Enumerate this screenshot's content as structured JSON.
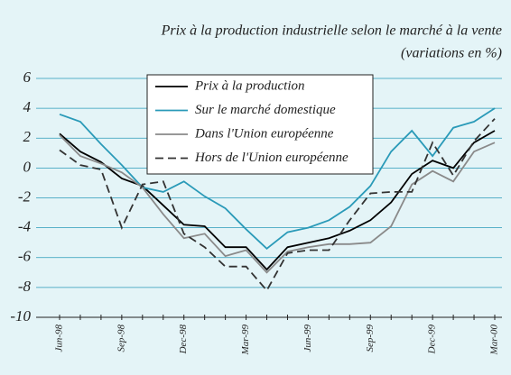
{
  "chart_data": {
    "type": "line",
    "title": "Prix à la production industrielle selon le marché à la vente",
    "subtitle": "(variations en %)",
    "categories": [
      "Jun-98",
      null,
      null,
      "Sep-98",
      null,
      null,
      "Dec-98",
      null,
      null,
      "Mar-99",
      null,
      null,
      "Jun-99",
      null,
      null,
      "Sep-99",
      null,
      null,
      "Dec-99",
      null,
      null,
      "Mar-00"
    ],
    "series": [
      {
        "name": "Prix à la production",
        "color": "#000000",
        "dash": false,
        "values": [
          2.3,
          1.1,
          0.4,
          -0.7,
          -1.2,
          -2.5,
          -3.8,
          -3.9,
          -5.3,
          -5.3,
          -6.8,
          -5.3,
          -5.0,
          -4.7,
          -4.2,
          -3.5,
          -2.3,
          -0.4,
          0.5,
          0.0,
          1.7,
          2.5
        ]
      },
      {
        "name": "Sur le marché domestique",
        "color": "#2a9ab8",
        "dash": false,
        "values": [
          3.6,
          3.1,
          1.6,
          0.2,
          -1.3,
          -1.6,
          -0.9,
          -1.9,
          -2.7,
          -4.1,
          -5.4,
          -4.3,
          -4.0,
          -3.5,
          -2.6,
          -1.2,
          1.1,
          2.5,
          0.8,
          2.7,
          3.1,
          4.0
        ]
      },
      {
        "name": "Dans l'Union européenne",
        "color": "#8a8a8a",
        "dash": false,
        "values": [
          2.2,
          0.8,
          0.3,
          -0.3,
          -1.3,
          -3.1,
          -4.7,
          -4.4,
          -5.9,
          -5.5,
          -7.0,
          -5.6,
          -5.3,
          -5.1,
          -5.1,
          -5.0,
          -3.9,
          -1.1,
          -0.2,
          -0.9,
          1.1,
          1.7
        ]
      },
      {
        "name": "Hors de l'Union européenne",
        "color": "#333333",
        "dash": true,
        "values": [
          1.2,
          0.2,
          -0.1,
          -4.0,
          -1.1,
          -0.9,
          -4.4,
          -5.3,
          -6.6,
          -6.6,
          -8.2,
          -5.7,
          -5.5,
          -5.5,
          -3.5,
          -1.7,
          -1.6,
          -1.6,
          1.7,
          -0.5,
          1.8,
          3.3
        ]
      }
    ],
    "ylim": [
      -10,
      6
    ],
    "yticks": [
      6,
      4,
      2,
      0,
      -2,
      -4,
      -6,
      -8,
      -10
    ],
    "grid": true
  }
}
